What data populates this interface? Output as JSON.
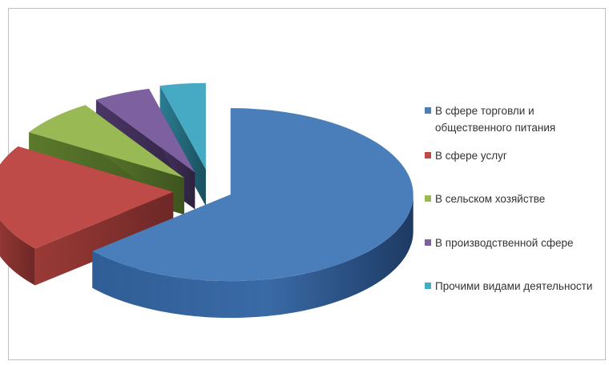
{
  "chart_data": {
    "type": "pie",
    "title": "",
    "three_d": true,
    "exploded": true,
    "legend_position": "right",
    "categories": [
      "В сфере торговли и общественного питания",
      "В сфере услуг",
      "В сельском хозяйстве",
      "В производственной сфере",
      "Прочими видами деятельности"
    ],
    "values": [
      63,
      20,
      7,
      5,
      4
    ],
    "colors": [
      "#4a7ebb",
      "#be4b48",
      "#98b954",
      "#7d60a0",
      "#46aac5"
    ],
    "series": [
      {
        "values": [
          63,
          20,
          7,
          5,
          4
        ]
      }
    ]
  }
}
